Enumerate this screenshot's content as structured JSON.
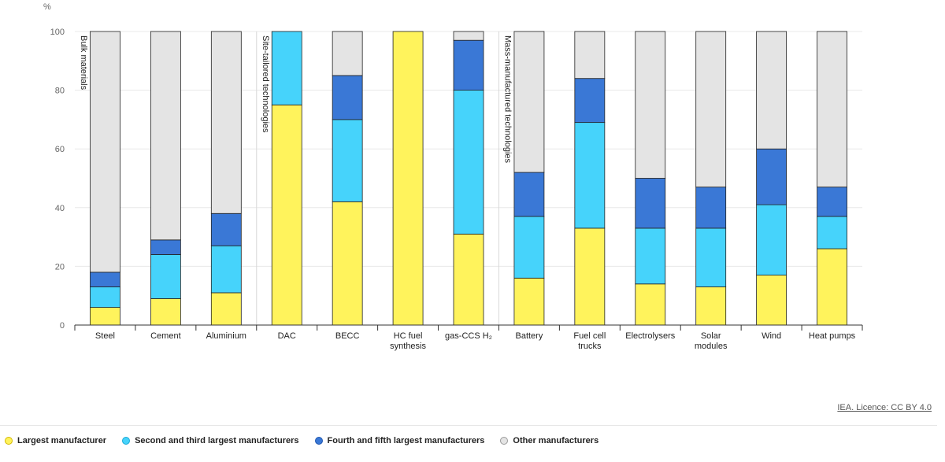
{
  "chart_data": {
    "type": "bar",
    "stacked": true,
    "unit_label": "%",
    "ylim": [
      0,
      100
    ],
    "yticks": [
      0,
      20,
      40,
      60,
      80,
      100
    ],
    "grid": true,
    "legend_position": "bottom-left",
    "categories": [
      [
        "Steel"
      ],
      [
        "Cement"
      ],
      [
        "Aluminium"
      ],
      [
        "DAC"
      ],
      [
        "BECC"
      ],
      [
        "HC fuel",
        "synthesis"
      ],
      [
        "gas-CCS H₂"
      ],
      [
        "Battery"
      ],
      [
        "Fuel cell",
        "trucks"
      ],
      [
        "Electrolysers"
      ],
      [
        "Solar",
        "modules"
      ],
      [
        "Wind"
      ],
      [
        "Heat pumps"
      ]
    ],
    "groups": [
      {
        "label": "Bulk materials",
        "start": 0
      },
      {
        "label": "Site-tailored technologies",
        "start": 3
      },
      {
        "label": "Mass-manufactured technologies",
        "start": 7
      }
    ],
    "series": [
      {
        "name": "Largest manufacturer",
        "color": "#fff35c",
        "values": [
          6,
          9,
          11,
          75,
          42,
          100,
          31,
          16,
          33,
          14,
          13,
          17,
          26
        ]
      },
      {
        "name": "Second and third largest manufacturers",
        "color": "#46d3fb",
        "values": [
          7,
          15,
          16,
          25,
          28,
          0,
          49,
          21,
          36,
          19,
          20,
          24,
          11
        ]
      },
      {
        "name": "Fourth and fifth largest manufacturers",
        "color": "#3a78d6",
        "values": [
          5,
          5,
          11,
          0,
          15,
          0,
          17,
          15,
          15,
          17,
          14,
          19,
          10
        ]
      },
      {
        "name": "Other manufacturers",
        "color": "#e4e4e4",
        "values": [
          82,
          71,
          62,
          0,
          15,
          0,
          3,
          48,
          16,
          50,
          53,
          40,
          53
        ]
      }
    ]
  },
  "legend_stroke_colors": [
    "#d4b800",
    "#1aa9d6",
    "#1f56b0",
    "#9a9a9a"
  ],
  "licence_text": "IEA. Licence: CC BY 4.0"
}
